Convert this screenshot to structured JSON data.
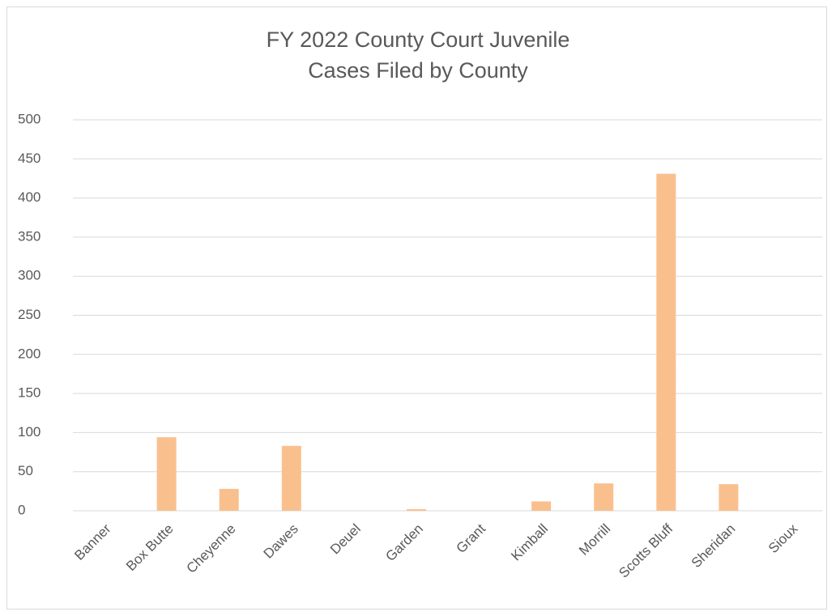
{
  "chart_data": {
    "type": "bar",
    "title": "FY 2022 County Court Juvenile Cases Filed by County",
    "categories": [
      "Banner",
      "Box Butte",
      "Cheyenne",
      "Dawes",
      "Deuel",
      "Garden",
      "Grant",
      "Kimball",
      "Morrill",
      "Scotts Bluff",
      "Sheridan",
      "Sioux"
    ],
    "values": [
      0,
      94,
      28,
      83,
      0,
      2,
      0,
      12,
      35,
      431,
      34,
      0
    ],
    "color": "#f9c08e",
    "ylim": [
      0,
      500
    ],
    "yticks": [
      0,
      50,
      100,
      150,
      200,
      250,
      300,
      350,
      400,
      450,
      500
    ],
    "grid": true
  }
}
